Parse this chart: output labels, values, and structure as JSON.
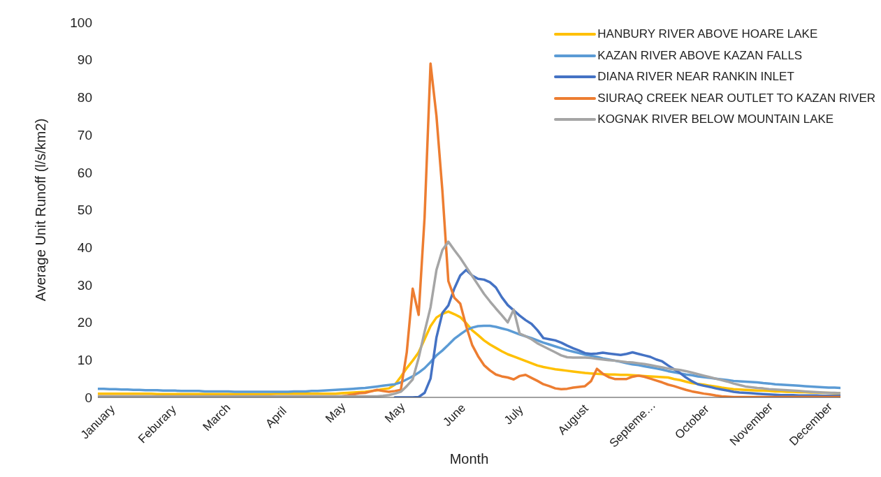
{
  "chart_data": {
    "type": "line",
    "xlabel": "Month",
    "ylabel": "Average Unit Runoff (l/s/km2)",
    "categories": [
      "January",
      null,
      null,
      null,
      null,
      null,
      null,
      null,
      null,
      null,
      "Feburary",
      null,
      null,
      null,
      null,
      null,
      null,
      null,
      null,
      null,
      "March",
      null,
      null,
      null,
      null,
      null,
      null,
      null,
      null,
      null,
      "April",
      null,
      null,
      null,
      null,
      null,
      null,
      null,
      null,
      null,
      "May",
      null,
      null,
      null,
      null,
      null,
      null,
      null,
      null,
      null,
      "May",
      null,
      null,
      null,
      null,
      null,
      null,
      null,
      null,
      null,
      "June",
      null,
      null,
      null,
      null,
      null,
      null,
      null,
      null,
      null,
      "July",
      null,
      null,
      null,
      null,
      null,
      null,
      null,
      null,
      null,
      "August",
      null,
      null,
      null,
      null,
      null,
      null,
      null,
      null,
      null,
      "Septeme…",
      null,
      null,
      null,
      null,
      null,
      null,
      null,
      null,
      null,
      "October",
      null,
      null,
      null,
      null,
      null,
      null,
      null,
      null,
      null,
      "November",
      null,
      null,
      null,
      null,
      null,
      null,
      null,
      null,
      null,
      "December",
      null,
      null,
      null,
      null,
      null
    ],
    "ylim": [
      0,
      100
    ],
    "yticks": [
      0,
      10,
      20,
      30,
      40,
      50,
      60,
      70,
      80,
      90,
      100
    ],
    "legend": "top right",
    "marker": "none",
    "line_style": "solid",
    "series": [
      {
        "name": "HANBURY RIVER ABOVE HOARE LAKE",
        "color": "#ffc000",
        "values": [
          1.0,
          1.0,
          1.0,
          1.0,
          1.0,
          1.0,
          1.0,
          1.0,
          1.0,
          1.0,
          0.9,
          0.9,
          0.9,
          0.9,
          0.9,
          0.9,
          0.9,
          0.9,
          0.9,
          0.9,
          0.9,
          0.9,
          0.9,
          0.9,
          0.9,
          0.9,
          0.9,
          0.9,
          0.9,
          0.9,
          1.0,
          1.0,
          1.0,
          1.0,
          1.0,
          1.0,
          1.0,
          1.0,
          1.0,
          1.0,
          1.0,
          1.1,
          1.2,
          1.3,
          1.4,
          1.5,
          1.7,
          1.9,
          2.2,
          2.4,
          3.4,
          5.5,
          7.8,
          9.8,
          12,
          15.5,
          19,
          21.3,
          22.3,
          22.9,
          22.2,
          21.4,
          19.8,
          17.9,
          16.6,
          15.2,
          14.1,
          13.2,
          12.3,
          11.5,
          10.9,
          10.3,
          9.7,
          9.1,
          8.5,
          8.1,
          7.8,
          7.5,
          7.3,
          7.1,
          6.9,
          6.7,
          6.5,
          6.4,
          6.3,
          6.2,
          6.1,
          6.1,
          6.0,
          6.0,
          5.9,
          5.8,
          5.7,
          5.6,
          5.5,
          5.4,
          5.3,
          4.9,
          4.6,
          4.2,
          3.8,
          3.6,
          3.4,
          3.1,
          2.9,
          2.6,
          2.4,
          2.2,
          2.1,
          2.0,
          1.9,
          1.8,
          1.8,
          1.7,
          1.6,
          1.6,
          1.5,
          1.5,
          1.4,
          1.4,
          1.3,
          1.3,
          1.2,
          1.2,
          1.1,
          1.1
        ]
      },
      {
        "name": "KAZAN RIVER ABOVE KAZAN FALLS",
        "color": "#5b9bd5",
        "values": [
          2.3,
          2.3,
          2.2,
          2.2,
          2.1,
          2.1,
          2.0,
          2.0,
          1.9,
          1.9,
          1.9,
          1.8,
          1.8,
          1.8,
          1.7,
          1.7,
          1.7,
          1.7,
          1.6,
          1.6,
          1.6,
          1.6,
          1.6,
          1.5,
          1.5,
          1.5,
          1.5,
          1.5,
          1.5,
          1.5,
          1.5,
          1.5,
          1.5,
          1.6,
          1.6,
          1.6,
          1.7,
          1.7,
          1.8,
          1.9,
          2.0,
          2.1,
          2.2,
          2.3,
          2.4,
          2.5,
          2.7,
          2.9,
          3.1,
          3.3,
          3.5,
          4.0,
          4.8,
          5.6,
          6.6,
          7.8,
          9.4,
          11.2,
          12.5,
          14.0,
          15.6,
          16.8,
          17.9,
          18.6,
          19.0,
          19.1,
          19.1,
          18.8,
          18.4,
          18.0,
          17.4,
          16.8,
          16.3,
          15.8,
          15.2,
          14.6,
          14.1,
          13.6,
          13.1,
          12.6,
          12.2,
          11.8,
          11.4,
          11.1,
          10.8,
          10.4,
          10.1,
          9.8,
          9.5,
          9.1,
          8.8,
          8.6,
          8.3,
          8.0,
          7.7,
          7.4,
          7.0,
          6.7,
          6.4,
          6.1,
          5.9,
          5.6,
          5.4,
          5.2,
          5.0,
          4.8,
          4.6,
          4.4,
          4.3,
          4.2,
          4.1,
          4.0,
          3.8,
          3.7,
          3.5,
          3.4,
          3.3,
          3.2,
          3.1,
          3.0,
          2.9,
          2.8,
          2.7,
          2.6,
          2.6,
          2.5
        ]
      },
      {
        "name": "DIANA RIVER NEAR RANKIN INLET",
        "color": "#4472c4",
        "values": [
          null,
          null,
          null,
          null,
          null,
          null,
          null,
          null,
          null,
          null,
          null,
          null,
          null,
          null,
          null,
          null,
          null,
          null,
          null,
          null,
          null,
          null,
          null,
          null,
          null,
          null,
          null,
          null,
          null,
          null,
          null,
          null,
          null,
          null,
          null,
          null,
          null,
          null,
          null,
          null,
          null,
          null,
          null,
          null,
          null,
          null,
          null,
          null,
          null,
          null,
          0,
          0,
          0,
          0,
          0.1,
          1.2,
          5,
          16,
          22.5,
          24.5,
          29,
          32.5,
          34,
          32.5,
          31.6,
          31.4,
          30.7,
          29.3,
          26.7,
          24.6,
          23.2,
          21.8,
          20.6,
          19.6,
          17.9,
          15.8,
          15.5,
          15.2,
          14.6,
          13.8,
          13.1,
          12.5,
          11.8,
          11.6,
          11.7,
          11.9,
          11.7,
          11.5,
          11.3,
          11.6,
          12.0,
          11.6,
          11.2,
          10.8,
          10.1,
          9.6,
          8.5,
          7.5,
          6.5,
          5.3,
          4.3,
          3.5,
          3.1,
          2.8,
          2.4,
          2.1,
          1.8,
          1.5,
          1.3,
          1.2,
          1.1,
          1.0,
          0.9,
          0.8,
          0.7,
          0.6,
          0.6,
          0.6,
          0.5,
          0.5,
          0.5,
          0.5,
          0.4,
          0.4,
          0.4,
          0.4
        ]
      },
      {
        "name": "SIURAQ CREEK NEAR OUTLET TO KAZAN RIVER",
        "color": "#ed7d31",
        "values": [
          0.3,
          0.3,
          0.3,
          0.3,
          0.3,
          0.3,
          0.3,
          0.3,
          0.3,
          0.3,
          0.3,
          0.3,
          0.3,
          0.3,
          0.3,
          0.3,
          0.3,
          0.3,
          0.3,
          0.3,
          0.3,
          0.3,
          0.3,
          0.3,
          0.3,
          0.3,
          0.3,
          0.3,
          0.3,
          0.3,
          0.3,
          0.3,
          0.3,
          0.3,
          0.3,
          0.3,
          0.3,
          0.3,
          0.3,
          0.3,
          0.3,
          0.3,
          0.5,
          0.8,
          1.1,
          1.2,
          1.6,
          2.0,
          1.7,
          1.5,
          1.7,
          2.0,
          12,
          29,
          22,
          48,
          89,
          75,
          55,
          31,
          26.6,
          25,
          19,
          14,
          11,
          8.6,
          7.2,
          6.1,
          5.6,
          5.3,
          4.8,
          5.7,
          6,
          5.2,
          4.4,
          3.5,
          3.0,
          2.4,
          2.2,
          2.3,
          2.6,
          2.8,
          3.0,
          4.3,
          7.6,
          6.3,
          5.4,
          4.9,
          4.9,
          4.9,
          5.5,
          5.8,
          5.5,
          5.0,
          4.5,
          4.0,
          3.4,
          3.0,
          2.5,
          2.0,
          1.6,
          1.3,
          1.0,
          0.8,
          0.5,
          0.3,
          0.2,
          0.1,
          0.1,
          0.1,
          0.1,
          0.1,
          0.1,
          0.1,
          0.1,
          0.1,
          0.1,
          0.1,
          0.1,
          0.1,
          0.1,
          0.1,
          0.1,
          0.1,
          0.1,
          0.1
        ]
      },
      {
        "name": "KOGNAK RIVER BELOW MOUNTAIN LAKE",
        "color": "#a5a5a5",
        "values": [
          0.3,
          0.3,
          0.3,
          0.3,
          0.3,
          0.3,
          0.3,
          0.3,
          0.3,
          0.3,
          0.3,
          0.3,
          0.3,
          0.3,
          0.3,
          0.3,
          0.3,
          0.3,
          0.3,
          0.3,
          0.3,
          0.3,
          0.3,
          0.3,
          0.3,
          0.3,
          0.3,
          0.3,
          0.3,
          0.3,
          0.3,
          0.3,
          0.3,
          0.3,
          0.3,
          0.3,
          0.3,
          0.3,
          0.3,
          0.3,
          0.3,
          0.3,
          0.3,
          0.3,
          0.3,
          0.3,
          0.3,
          0.3,
          0.4,
          0.6,
          1.0,
          1.5,
          3.0,
          4.8,
          10.5,
          17.5,
          24,
          34,
          39.3,
          41.5,
          39.3,
          37.2,
          34.8,
          32.4,
          30,
          27.6,
          25.6,
          23.7,
          21.9,
          20,
          23.4,
          17.0,
          16.3,
          15.5,
          14.4,
          13.6,
          12.8,
          12.0,
          11.2,
          10.7,
          10.6,
          10.6,
          10.6,
          10.5,
          10.3,
          10.1,
          9.9,
          9.8,
          9.6,
          9.4,
          9.3,
          9.1,
          8.9,
          8.6,
          8.3,
          8.0,
          7.7,
          7.5,
          7.3,
          7.0,
          6.6,
          6.2,
          5.8,
          5.4,
          5.0,
          4.6,
          4.2,
          3.7,
          3.3,
          2.9,
          2.7,
          2.5,
          2.4,
          2.2,
          2.1,
          2.0,
          1.9,
          1.8,
          1.7,
          1.6,
          1.5,
          1.4,
          1.3,
          1.2,
          1.2,
          1.1
        ]
      }
    ]
  }
}
